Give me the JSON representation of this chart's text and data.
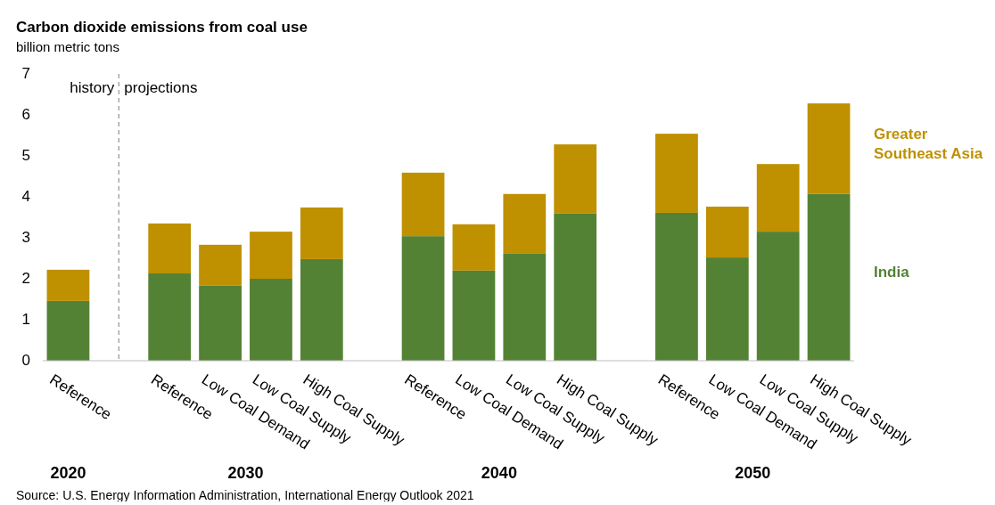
{
  "chart_data": {
    "type": "bar",
    "title": "Carbon dioxide emissions from coal use",
    "subtitle": "billion metric tons",
    "stacked": true,
    "categories": [
      "Reference",
      null,
      "Reference",
      "Low Coal Demand",
      "Low Coal Supply",
      "High Coal Supply",
      null,
      "Reference",
      "Low Coal Demand",
      "Low Coal Supply",
      "High Coal Supply",
      null,
      "Reference",
      "Low Coal Demand",
      "Low Coal Supply",
      "High Coal Supply"
    ],
    "series": [
      {
        "name": "India",
        "color": "#548235",
        "values": [
          1.46,
          null,
          2.13,
          1.83,
          2.0,
          2.48,
          null,
          3.04,
          2.2,
          2.61,
          3.59,
          null,
          3.61,
          2.52,
          3.15,
          4.07
        ]
      },
      {
        "name": "Greater Southeast Asia",
        "color": "#bf9000",
        "values": [
          0.76,
          null,
          1.22,
          1.0,
          1.15,
          1.26,
          null,
          1.55,
          1.13,
          1.46,
          1.69,
          null,
          1.93,
          1.24,
          1.65,
          2.21
        ]
      }
    ],
    "ylim": [
      0,
      7
    ],
    "yticks": [
      0,
      1,
      2,
      3,
      4,
      5,
      6,
      7
    ],
    "legend": false,
    "annotations": [
      "2020",
      "2030",
      "2040",
      "2050",
      "history",
      "projections",
      "Source: U.S. Energy Information Administration, International Energy Outlook 2021"
    ]
  }
}
